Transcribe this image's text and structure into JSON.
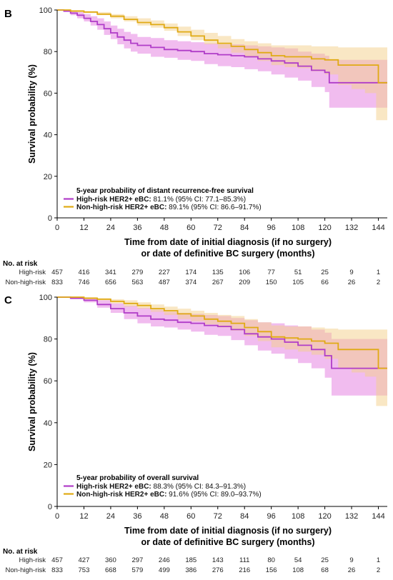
{
  "chart_data": [
    {
      "type": "line",
      "panel_label": "B",
      "xlabel": "Time from date of initial diagnosis (if no surgery)",
      "xlabel_line2": "or date of definitive BC surgery (months)",
      "ylabel": "Survival probability (%)",
      "xlim": [
        0,
        148
      ],
      "ylim": [
        0,
        100
      ],
      "xticks": [
        0,
        12,
        24,
        36,
        48,
        60,
        72,
        84,
        96,
        108,
        120,
        132,
        144
      ],
      "yticks": [
        0,
        20,
        40,
        60,
        80,
        100
      ],
      "legend": {
        "title": "5-year probability of distant recurrence-free survival",
        "entries": [
          {
            "series": 0,
            "bold": "High-risk HER2+ eBC:",
            "text": " 81.1% (95% CI: 77.1–85.3%)"
          },
          {
            "series": 1,
            "bold": "Non-high-risk HER2+ eBC:",
            "text": " 89.1% (95% CI: 86.6–91.7%)"
          }
        ]
      },
      "series": [
        {
          "name": "High-risk HER2+ eBC",
          "color": "#b03cc8",
          "band_color": "#e37ae0",
          "x": [
            0,
            3,
            6,
            9,
            12,
            15,
            18,
            21,
            24,
            27,
            30,
            33,
            36,
            42,
            48,
            54,
            60,
            66,
            72,
            78,
            84,
            90,
            96,
            102,
            108,
            114,
            120,
            122,
            132,
            144,
            148
          ],
          "y": [
            100,
            99.5,
            98.5,
            97.5,
            96,
            94.5,
            93,
            91,
            89,
            87,
            85.5,
            84,
            83,
            82,
            81,
            80.5,
            80,
            79,
            78.5,
            78,
            77.5,
            76.5,
            75.5,
            74.5,
            73,
            71,
            70,
            65,
            65,
            65,
            65
          ],
          "lower": [
            100,
            99,
            97.5,
            96,
            94.5,
            92.5,
            90.5,
            88,
            86,
            83.5,
            81.5,
            80,
            79,
            77.5,
            77,
            76,
            75.5,
            74,
            73,
            72.5,
            71.5,
            70.5,
            69,
            67.5,
            66,
            63,
            60.5,
            53,
            53,
            53,
            53
          ],
          "upper": [
            100,
            100,
            99.5,
            99,
            98,
            97,
            96,
            94.5,
            92.5,
            91,
            89.5,
            88.5,
            87,
            86.5,
            85.5,
            85,
            84.5,
            84,
            83.5,
            83.5,
            83,
            82.5,
            82,
            81.5,
            80,
            79,
            78,
            76,
            76,
            76,
            76
          ]
        },
        {
          "name": "Non-high-risk HER2+ eBC",
          "color": "#e0aa14",
          "band_color": "#f3cf8a",
          "x": [
            0,
            6,
            12,
            18,
            24,
            30,
            36,
            42,
            48,
            54,
            60,
            66,
            72,
            78,
            84,
            90,
            96,
            102,
            108,
            114,
            120,
            126,
            132,
            138,
            143,
            144,
            148
          ],
          "y": [
            100,
            99.5,
            99,
            98,
            97,
            95.5,
            94,
            93,
            91.5,
            89.5,
            87.5,
            85.5,
            84,
            82.5,
            81,
            79.5,
            78,
            77.5,
            77.5,
            76.5,
            76,
            73.5,
            73.5,
            73.5,
            73.5,
            65,
            65
          ],
          "lower": [
            100,
            99,
            98.5,
            97.5,
            96,
            94.5,
            92.5,
            91.5,
            90,
            87.5,
            85.5,
            83.5,
            81.5,
            79.5,
            77.5,
            75.5,
            73.5,
            72.5,
            72,
            70.5,
            69,
            64,
            62,
            60,
            47,
            47,
            47
          ],
          "upper": [
            100,
            100,
            99.5,
            99,
            98,
            97,
            96,
            95,
            93.5,
            92,
            90.5,
            89,
            87.5,
            86,
            85,
            84,
            83,
            83,
            83,
            82.5,
            82.5,
            82,
            82,
            82,
            82,
            82,
            82
          ]
        }
      ],
      "risk_table": {
        "title": "No. at risk",
        "rows": [
          {
            "label": "High-risk",
            "values": [
              "457",
              "416",
              "341",
              "279",
              "227",
              "174",
              "135",
              "106",
              "77",
              "51",
              "25",
              "9",
              "1"
            ]
          },
          {
            "label": "Non-high-risk",
            "values": [
              "833",
              "746",
              "656",
              "563",
              "487",
              "374",
              "267",
              "209",
              "150",
              "105",
              "66",
              "26",
              "2"
            ]
          }
        ]
      }
    },
    {
      "type": "line",
      "panel_label": "C",
      "xlabel": "Time from date of initial diagnosis (if no surgery)",
      "xlabel_line2": "or date of definitive BC surgery (months)",
      "ylabel": "Survival probability (%)",
      "xlim": [
        0,
        148
      ],
      "ylim": [
        0,
        100
      ],
      "xticks": [
        0,
        12,
        24,
        36,
        48,
        60,
        72,
        84,
        96,
        108,
        120,
        132,
        144
      ],
      "yticks": [
        0,
        20,
        40,
        60,
        80,
        100
      ],
      "legend": {
        "title": "5-year probability of overall survival",
        "entries": [
          {
            "series": 0,
            "bold": "High-risk HER2+ eBC:",
            "text": " 88.3% (95% CI: 84.3–91.3%)"
          },
          {
            "series": 1,
            "bold": "Non-high-risk HER2+ eBC:",
            "text": " 91.6% (95% CI: 89.0–93.7%)"
          }
        ]
      },
      "series": [
        {
          "name": "High-risk HER2+ eBC",
          "color": "#b03cc8",
          "band_color": "#e37ae0",
          "x": [
            0,
            6,
            12,
            18,
            24,
            30,
            36,
            42,
            48,
            54,
            60,
            66,
            72,
            78,
            84,
            90,
            96,
            102,
            108,
            114,
            120,
            123,
            132,
            144,
            148
          ],
          "y": [
            100,
            99.5,
            98.5,
            96.5,
            94.5,
            92.5,
            91,
            89.5,
            89,
            88,
            87.5,
            86.5,
            86,
            84.5,
            82.5,
            81,
            80,
            78.5,
            77,
            75,
            72,
            66,
            66,
            66,
            66
          ],
          "lower": [
            100,
            99,
            97.5,
            95,
            92.5,
            89.5,
            87.5,
            86,
            85.5,
            84.5,
            83.5,
            82,
            81.5,
            79.5,
            77,
            74.5,
            73,
            70.5,
            68.5,
            66,
            61.5,
            53,
            53,
            53,
            53
          ],
          "upper": [
            100,
            100,
            99.5,
            98.5,
            97,
            96,
            95,
            94,
            93,
            92.5,
            92,
            91.5,
            91,
            90,
            89,
            88,
            87.5,
            86.5,
            86,
            84.5,
            83,
            80,
            80,
            80,
            80
          ]
        },
        {
          "name": "Non-high-risk HER2+ eBC",
          "color": "#e0aa14",
          "band_color": "#f3cf8a",
          "x": [
            0,
            6,
            12,
            18,
            24,
            30,
            36,
            42,
            48,
            54,
            60,
            66,
            72,
            78,
            84,
            90,
            96,
            102,
            108,
            114,
            120,
            126,
            132,
            138,
            143,
            144,
            148
          ],
          "y": [
            100,
            100,
            99.5,
            99,
            98,
            97,
            96,
            94.5,
            93.5,
            92,
            91,
            89.5,
            88.5,
            87.5,
            85.5,
            83.5,
            81,
            80.5,
            80,
            79,
            78,
            75,
            75,
            75,
            75,
            66,
            66
          ],
          "lower": [
            100,
            99.5,
            99,
            98.5,
            97,
            95.5,
            94.5,
            93,
            91.5,
            89.5,
            88.5,
            87,
            85.5,
            84,
            81.5,
            79,
            76,
            75,
            74,
            72.5,
            70.5,
            66,
            64,
            62,
            48,
            48,
            48
          ],
          "upper": [
            100,
            100,
            100,
            99.5,
            99,
            98.5,
            97.5,
            96.5,
            95.5,
            94.5,
            93.5,
            92.5,
            91.5,
            91,
            89.5,
            88,
            86.5,
            86,
            86,
            85.5,
            85,
            84.5,
            84.5,
            84.5,
            84.5,
            84.5,
            84.5
          ]
        }
      ],
      "risk_table": {
        "title": "No. at risk",
        "rows": [
          {
            "label": "High-risk",
            "values": [
              "457",
              "427",
              "360",
              "297",
              "246",
              "185",
              "143",
              "111",
              "80",
              "54",
              "25",
              "9",
              "1"
            ]
          },
          {
            "label": "Non-high-risk",
            "values": [
              "833",
              "753",
              "668",
              "579",
              "499",
              "386",
              "276",
              "216",
              "156",
              "108",
              "68",
              "26",
              "2"
            ]
          }
        ]
      }
    }
  ]
}
